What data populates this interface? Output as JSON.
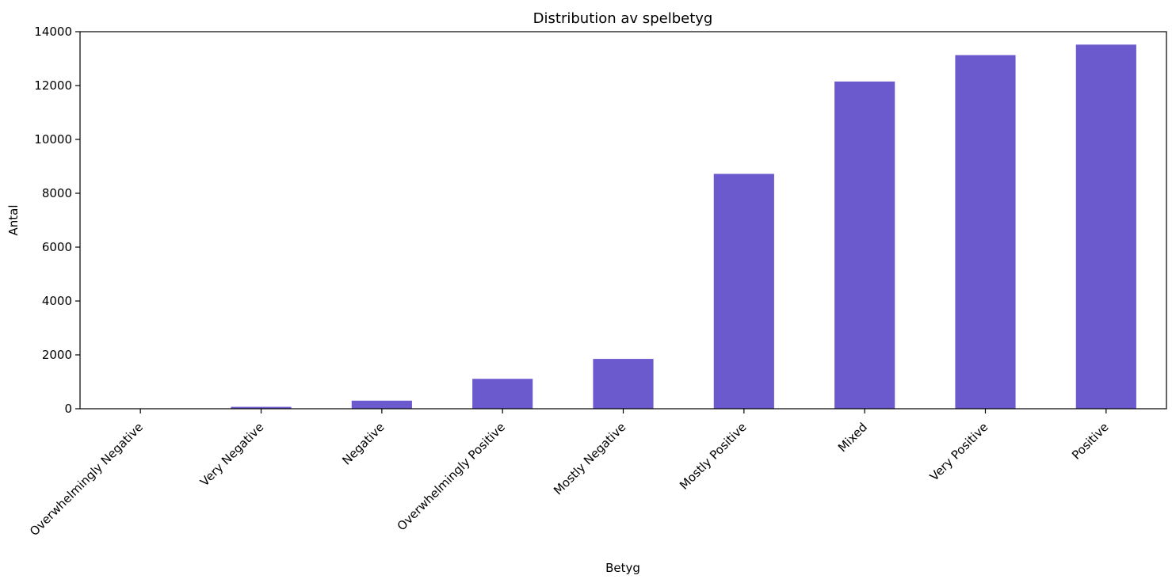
{
  "chart_data": {
    "type": "bar",
    "title": "Distribution av spelbetyg",
    "xlabel": "Betyg",
    "ylabel": "Antal",
    "categories": [
      "Overwhelmingly Negative",
      "Very Negative",
      "Negative",
      "Overwhelmingly Positive",
      "Mostly Negative",
      "Mostly Positive",
      "Mixed",
      "Very Positive",
      "Positive"
    ],
    "values": [
      5,
      70,
      300,
      1110,
      1850,
      8720,
      12150,
      13130,
      13520
    ],
    "ylim": [
      0,
      14000
    ],
    "yticks": [
      0,
      2000,
      4000,
      6000,
      8000,
      10000,
      12000,
      14000
    ],
    "bar_color": "#6a5acd",
    "grid": false,
    "legend": "none"
  }
}
